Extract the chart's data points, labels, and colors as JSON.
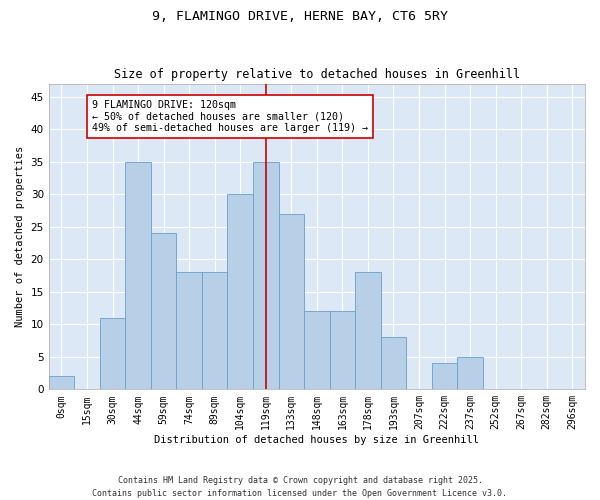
{
  "title1": "9, FLAMINGO DRIVE, HERNE BAY, CT6 5RY",
  "title2": "Size of property relative to detached houses in Greenhill",
  "xlabel": "Distribution of detached houses by size in Greenhill",
  "ylabel": "Number of detached properties",
  "bar_labels": [
    "0sqm",
    "15sqm",
    "30sqm",
    "44sqm",
    "59sqm",
    "74sqm",
    "89sqm",
    "104sqm",
    "119sqm",
    "133sqm",
    "148sqm",
    "163sqm",
    "178sqm",
    "193sqm",
    "207sqm",
    "222sqm",
    "237sqm",
    "252sqm",
    "267sqm",
    "282sqm",
    "296sqm"
  ],
  "bar_values": [
    2,
    0,
    11,
    35,
    24,
    18,
    18,
    30,
    35,
    27,
    12,
    12,
    18,
    8,
    0,
    4,
    5,
    0,
    0,
    0,
    0
  ],
  "bar_color": "#b8cfe8",
  "bar_edge_color": "#6a9fc8",
  "vline_index": 8,
  "vline_color": "#cc0000",
  "annotation_text": "9 FLAMINGO DRIVE: 120sqm\n← 50% of detached houses are smaller (120)\n49% of semi-detached houses are larger (119) →",
  "annotation_box_color": "#ffffff",
  "annotation_box_edge_color": "#cc0000",
  "ylim": [
    0,
    47
  ],
  "yticks": [
    0,
    5,
    10,
    15,
    20,
    25,
    30,
    35,
    40,
    45
  ],
  "bg_color": "#dce8f5",
  "footer": "Contains HM Land Registry data © Crown copyright and database right 2025.\nContains public sector information licensed under the Open Government Licence v3.0.",
  "title1_fontsize": 9.5,
  "title2_fontsize": 8.5,
  "annotation_fontsize": 7.2,
  "footer_fontsize": 6.0,
  "xlabel_fontsize": 7.5,
  "ylabel_fontsize": 7.5,
  "tick_fontsize": 7.0,
  "ytick_fontsize": 7.5
}
